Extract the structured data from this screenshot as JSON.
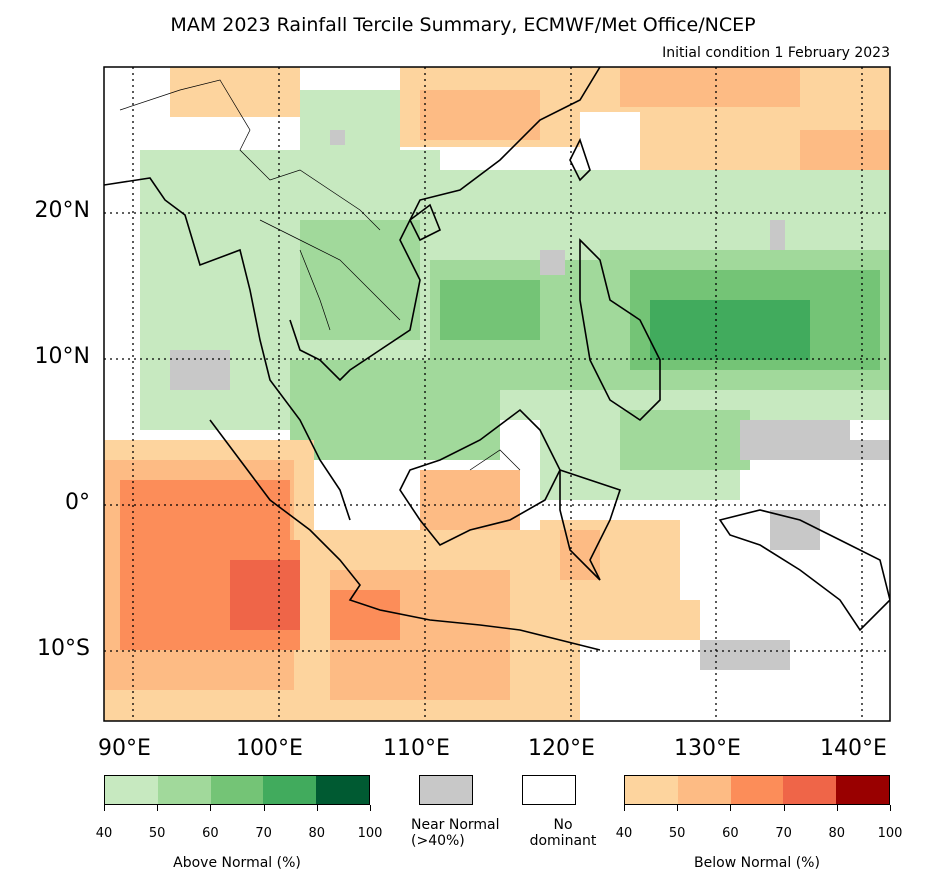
{
  "title": "MAM 2023 Rainfall Tercile Summary, ECMWF/Met Office/NCEP",
  "subtitle": "Initial condition 1 February 2023",
  "map": {
    "lat_labels": [
      "20°N",
      "10°N",
      "0°",
      "10°S"
    ],
    "lon_labels": [
      "90°E",
      "100°E",
      "110°E",
      "120°E",
      "130°E",
      "140°E"
    ],
    "extent": {
      "lon": [
        88,
        142
      ],
      "lat": [
        -15,
        30
      ]
    },
    "gridlines": "dotted"
  },
  "legend": {
    "above": {
      "label": "Above Normal (%)",
      "ticks": [
        "40",
        "50",
        "60",
        "70",
        "80",
        "100"
      ],
      "colors": [
        "#c7e9c0",
        "#a1d99b",
        "#74c476",
        "#41ab5d",
        "#005a32"
      ]
    },
    "near": {
      "label": "Near Normal\n(>40%)",
      "color": "#c8c8c8"
    },
    "none": {
      "label": "No\ndominant",
      "color": "#ffffff"
    },
    "below": {
      "label": "Below Normal (%)",
      "ticks": [
        "40",
        "50",
        "60",
        "70",
        "80",
        "100"
      ],
      "colors": [
        "#fdd49e",
        "#fdbb84",
        "#fc8d59",
        "#ef6548",
        "#990000"
      ]
    }
  }
}
